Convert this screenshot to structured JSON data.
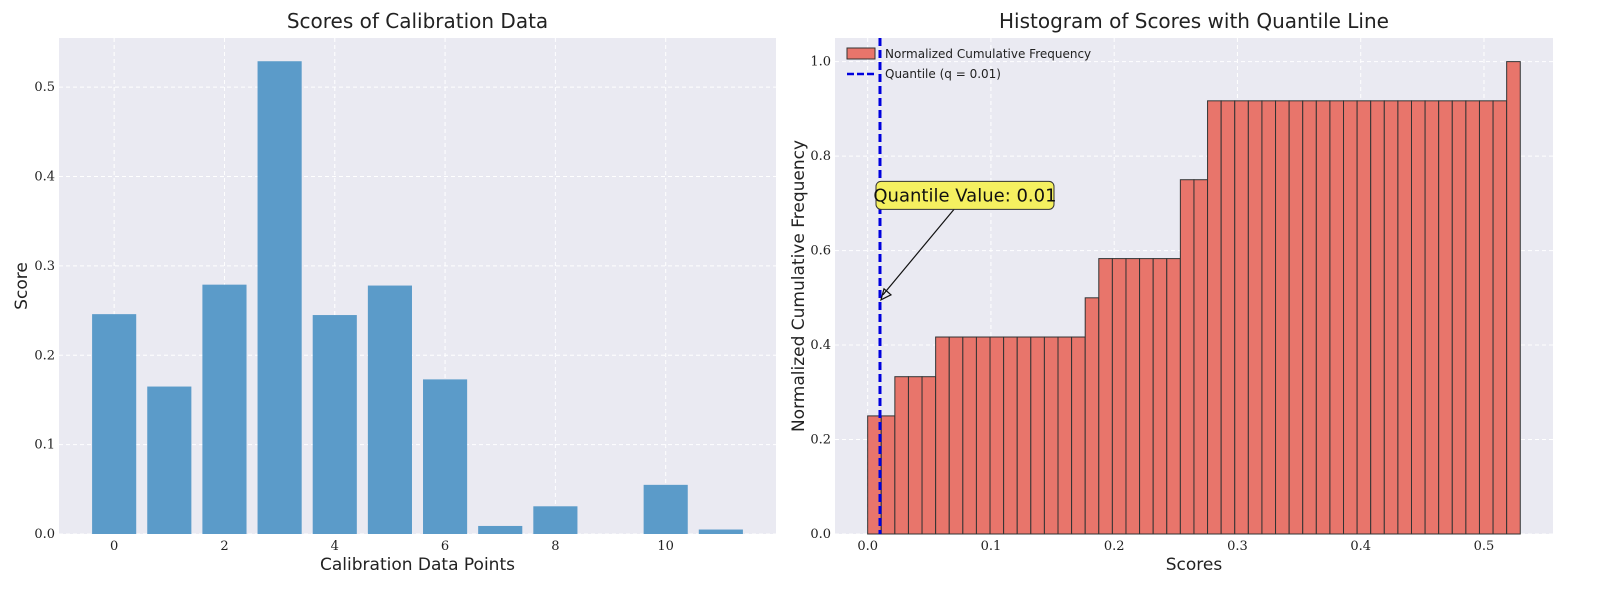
{
  "chart_data": [
    {
      "type": "bar",
      "title": "Scores of Calibration Data",
      "xlabel": "Calibration Data Points",
      "ylabel": "Score",
      "x": [
        0,
        1,
        2,
        3,
        4,
        5,
        6,
        7,
        8,
        9,
        10,
        11
      ],
      "values": [
        0.246,
        0.165,
        0.279,
        0.529,
        0.245,
        0.278,
        0.173,
        0.009,
        0.031,
        0.0,
        0.055,
        0.005
      ],
      "xticks": [
        0,
        2,
        4,
        6,
        8,
        10
      ],
      "yticks": [
        0.0,
        0.1,
        0.2,
        0.3,
        0.4,
        0.5
      ],
      "xlim": [
        -1.0,
        12.0
      ],
      "ylim": [
        0,
        0.555
      ],
      "color": "#5b9bc9",
      "grid": true
    },
    {
      "type": "bar",
      "title": "Histogram of Scores with Quantile Line",
      "xlabel": "Scores",
      "ylabel": "Normalized Cumulative Frequency",
      "bin_start": 0.0,
      "bin_width": 0.01103,
      "values": [
        0.25,
        0.25,
        0.333,
        0.333,
        0.333,
        0.417,
        0.417,
        0.417,
        0.417,
        0.417,
        0.417,
        0.417,
        0.417,
        0.417,
        0.417,
        0.417,
        0.5,
        0.583,
        0.583,
        0.583,
        0.583,
        0.583,
        0.583,
        0.75,
        0.75,
        0.917,
        0.917,
        0.917,
        0.917,
        0.917,
        0.917,
        0.917,
        0.917,
        0.917,
        0.917,
        0.917,
        0.917,
        0.917,
        0.917,
        0.917,
        0.917,
        0.917,
        0.917,
        0.917,
        0.917,
        0.917,
        0.917,
        1.0
      ],
      "xticks": [
        0.0,
        0.1,
        0.2,
        0.3,
        0.4,
        0.5
      ],
      "yticks": [
        0.0,
        0.2,
        0.4,
        0.6,
        0.8,
        1.0
      ],
      "xlim": [
        -0.0265,
        0.556
      ],
      "ylim": [
        0,
        1.05
      ],
      "color": "#e8756b",
      "edgecolor": "#333333",
      "quantile": {
        "value": 0.01,
        "color": "#0000dd",
        "legend_label": "Quantile (q = 0.01)",
        "annotation": "Quantile Value: 0.01",
        "arrow_point": [
          0.01,
          0.5
        ],
        "text_anchor_point": [
          0.01,
          0.7
        ]
      },
      "legend": {
        "placement": "top-left",
        "entries": [
          "Normalized Cumulative Frequency",
          "Quantile (q = 0.01)"
        ]
      },
      "grid": true
    }
  ]
}
